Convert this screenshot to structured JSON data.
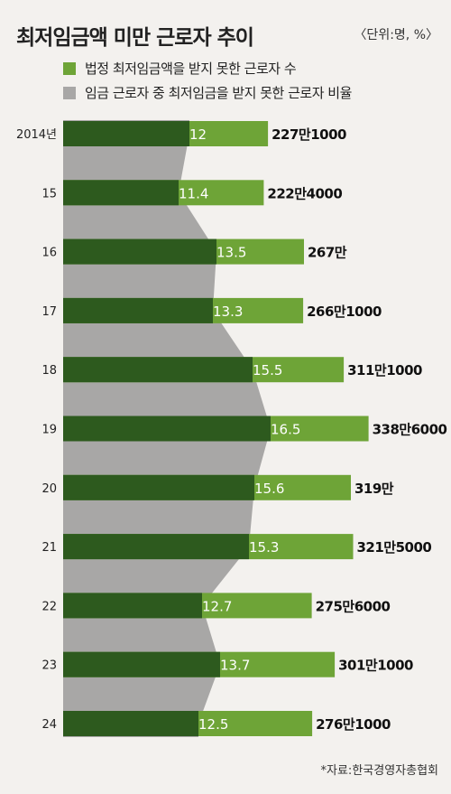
{
  "title": "최저임금액 미만 근로자 추이",
  "unit": "〈단위:명, %〉",
  "legend": [
    {
      "label": "법정 최저임금액을 받지 못한 근로자 수",
      "color": "#6ea437"
    },
    {
      "label": "임금 근로자 중 최저임금을 받지 못한 근로자 비율",
      "color": "#a8a7a6"
    }
  ],
  "source": "*자료:한국경영자총협회",
  "colors": {
    "bar": "#6ea437",
    "bar_dark": "#2d5a1e",
    "area": "#a8a7a6",
    "background": "#f3f1ee"
  },
  "chart_data": {
    "type": "bar",
    "categories": [
      "2014년",
      "15",
      "16",
      "17",
      "18",
      "19",
      "20",
      "21",
      "22",
      "23",
      "24"
    ],
    "series": [
      {
        "name": "법정 최저임금액을 받지 못한 근로자 수",
        "values": [
          2271000,
          2224000,
          2670000,
          2661000,
          3111000,
          3386000,
          3190000,
          3215000,
          2756000,
          3011000,
          2761000
        ],
        "labels": [
          "227만1000",
          "222만4000",
          "267만",
          "266만1000",
          "311만1000",
          "338만6000",
          "319만",
          "321만5000",
          "275만6000",
          "301만1000",
          "276만1000"
        ]
      },
      {
        "name": "임금 근로자 중 최저임금을 받지 못한 근로자 비율",
        "type": "area",
        "values": [
          12,
          11.4,
          13.5,
          13.3,
          15.5,
          16.5,
          15.6,
          15.3,
          12.7,
          13.7,
          12.5
        ],
        "labels": [
          "12",
          "11.4",
          "13.5",
          "13.3",
          "15.5",
          "16.5",
          "15.6",
          "15.3",
          "12.7",
          "13.7",
          "12.5"
        ]
      }
    ]
  }
}
